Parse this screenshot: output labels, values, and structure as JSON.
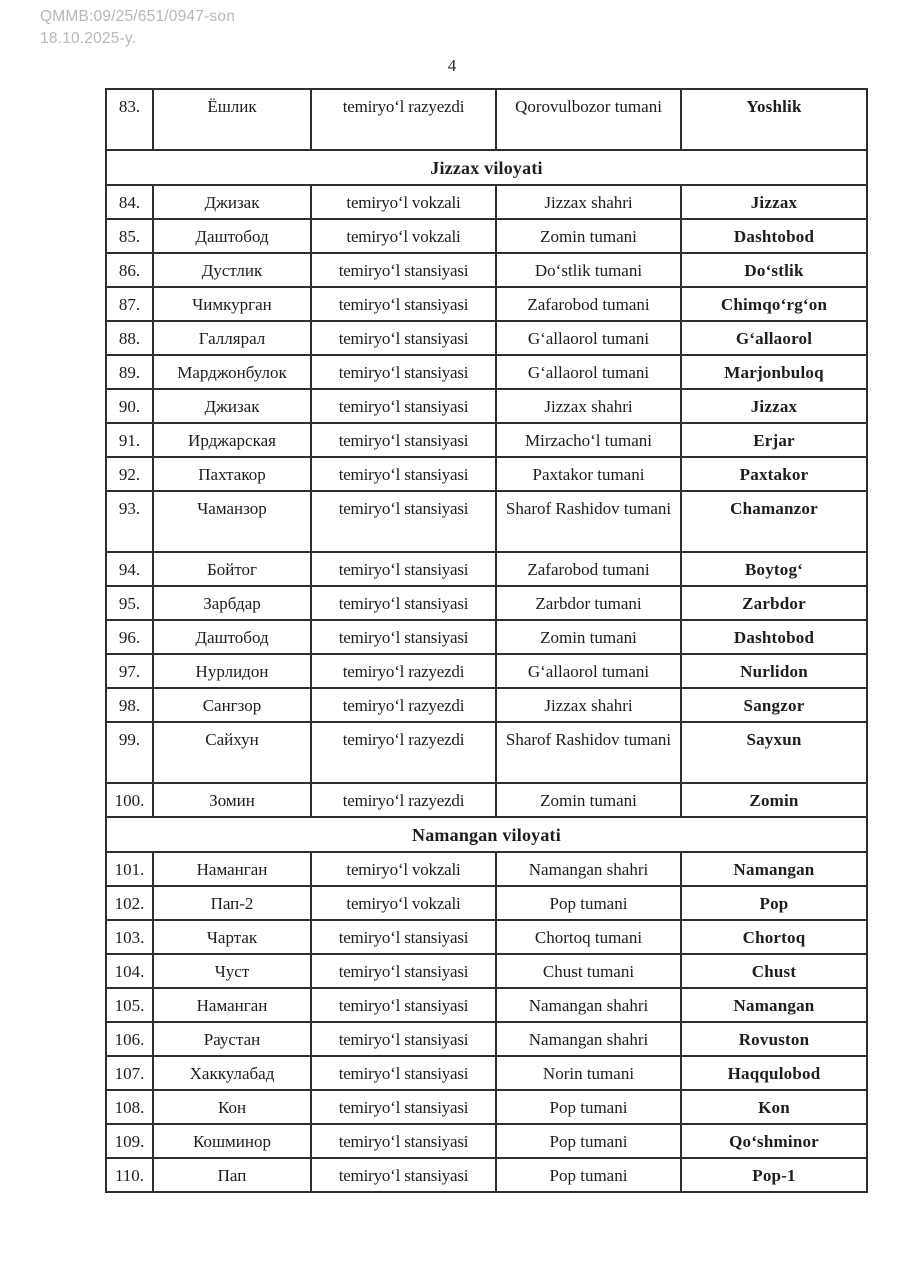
{
  "header": {
    "doc_ref": "QMMB:09/25/651/0947-son",
    "doc_date": "18.10.2025-y.",
    "page_number": "4"
  },
  "colors": {
    "ink": "#1d1d1d",
    "border": "#2e2e2e",
    "muted_header_text": "#b7b8bc",
    "background": "#ffffff"
  },
  "table": {
    "columns": [
      "number",
      "name_cyrillic",
      "facility_type",
      "location",
      "name_latin"
    ],
    "rows": [
      {
        "kind": "data",
        "no": "83.",
        "name_cyrillic": "Ёшлик",
        "facility_type": "temiryo‘l razyezdi",
        "location": "Qorovulbozor tumani",
        "name_latin": "Yoshlik",
        "tall": true
      },
      {
        "kind": "section",
        "label": "Jizzax viloyati"
      },
      {
        "kind": "data",
        "no": "84.",
        "name_cyrillic": "Джизак",
        "facility_type": "temiryo‘l vokzali",
        "location": "Jizzax shahri",
        "name_latin": "Jizzax",
        "tall": false
      },
      {
        "kind": "data",
        "no": "85.",
        "name_cyrillic": "Даштобод",
        "facility_type": "temiryo‘l vokzali",
        "location": "Zomin tumani",
        "name_latin": "Dashtobod",
        "tall": false
      },
      {
        "kind": "data",
        "no": "86.",
        "name_cyrillic": "Дустлик",
        "facility_type": "temiryo‘l stansiyasi",
        "location": "Do‘stlik tumani",
        "name_latin": "Do‘stlik",
        "tall": false
      },
      {
        "kind": "data",
        "no": "87.",
        "name_cyrillic": "Чимкурган",
        "facility_type": "temiryo‘l stansiyasi",
        "location": "Zafarobod tumani",
        "name_latin": "Chimqo‘rg‘on",
        "tall": false
      },
      {
        "kind": "data",
        "no": "88.",
        "name_cyrillic": "Галлярал",
        "facility_type": "temiryo‘l stansiyasi",
        "location": "G‘allaorol tumani",
        "name_latin": "G‘allaorol",
        "tall": false
      },
      {
        "kind": "data",
        "no": "89.",
        "name_cyrillic": "Марджонбулок",
        "facility_type": "temiryo‘l stansiyasi",
        "location": "G‘allaorol tumani",
        "name_latin": "Marjonbuloq",
        "tall": false
      },
      {
        "kind": "data",
        "no": "90.",
        "name_cyrillic": "Джизак",
        "facility_type": "temiryo‘l stansiyasi",
        "location": "Jizzax shahri",
        "name_latin": "Jizzax",
        "tall": false
      },
      {
        "kind": "data",
        "no": "91.",
        "name_cyrillic": "Ирджарская",
        "facility_type": "temiryo‘l stansiyasi",
        "location": "Mirzacho‘l tumani",
        "name_latin": "Erjar",
        "tall": false
      },
      {
        "kind": "data",
        "no": "92.",
        "name_cyrillic": "Пахтакор",
        "facility_type": "temiryo‘l stansiyasi",
        "location": "Paxtakor tumani",
        "name_latin": "Paxtakor",
        "tall": false
      },
      {
        "kind": "data",
        "no": "93.",
        "name_cyrillic": "Чаманзор",
        "facility_type": "temiryo‘l stansiyasi",
        "location": "Sharof Rashidov tumani",
        "name_latin": "Chamanzor",
        "tall": true
      },
      {
        "kind": "data",
        "no": "94.",
        "name_cyrillic": "Бойтог",
        "facility_type": "temiryo‘l stansiyasi",
        "location": "Zafarobod tumani",
        "name_latin": "Boytog‘",
        "tall": false
      },
      {
        "kind": "data",
        "no": "95.",
        "name_cyrillic": "Зарбдар",
        "facility_type": "temiryo‘l stansiyasi",
        "location": "Zarbdor tumani",
        "name_latin": "Zarbdor",
        "tall": false
      },
      {
        "kind": "data",
        "no": "96.",
        "name_cyrillic": "Даштобод",
        "facility_type": "temiryo‘l stansiyasi",
        "location": "Zomin tumani",
        "name_latin": "Dashtobod",
        "tall": false
      },
      {
        "kind": "data",
        "no": "97.",
        "name_cyrillic": "Нурлидон",
        "facility_type": "temiryo‘l razyezdi",
        "location": "G‘allaorol tumani",
        "name_latin": "Nurlidon",
        "tall": false
      },
      {
        "kind": "data",
        "no": "98.",
        "name_cyrillic": "Сангзор",
        "facility_type": "temiryo‘l razyezdi",
        "location": "Jizzax shahri",
        "name_latin": "Sangzor",
        "tall": false
      },
      {
        "kind": "data",
        "no": "99.",
        "name_cyrillic": "Сайхун",
        "facility_type": "temiryo‘l razyezdi",
        "location": "Sharof Rashidov tumani",
        "name_latin": "Sayxun",
        "tall": true
      },
      {
        "kind": "data",
        "no": "100.",
        "name_cyrillic": "Зомин",
        "facility_type": "temiryo‘l razyezdi",
        "location": "Zomin tumani",
        "name_latin": "Zomin",
        "tall": false
      },
      {
        "kind": "section",
        "label": "Namangan viloyati"
      },
      {
        "kind": "data",
        "no": "101.",
        "name_cyrillic": "Наманган",
        "facility_type": "temiryo‘l vokzali",
        "location": "Namangan shahri",
        "name_latin": "Namangan",
        "tall": false
      },
      {
        "kind": "data",
        "no": "102.",
        "name_cyrillic": "Пап-2",
        "facility_type": "temiryo‘l vokzali",
        "location": "Pop tumani",
        "name_latin": "Pop",
        "tall": false
      },
      {
        "kind": "data",
        "no": "103.",
        "name_cyrillic": "Чартак",
        "facility_type": "temiryo‘l stansiyasi",
        "location": "Chortoq tumani",
        "name_latin": "Chortoq",
        "tall": false
      },
      {
        "kind": "data",
        "no": "104.",
        "name_cyrillic": "Чуст",
        "facility_type": "temiryo‘l stansiyasi",
        "location": "Chust tumani",
        "name_latin": "Chust",
        "tall": false
      },
      {
        "kind": "data",
        "no": "105.",
        "name_cyrillic": "Наманган",
        "facility_type": "temiryo‘l stansiyasi",
        "location": "Namangan shahri",
        "name_latin": "Namangan",
        "tall": false
      },
      {
        "kind": "data",
        "no": "106.",
        "name_cyrillic": "Раустан",
        "facility_type": "temiryo‘l stansiyasi",
        "location": "Namangan shahri",
        "name_latin": "Rovuston",
        "tall": false
      },
      {
        "kind": "data",
        "no": "107.",
        "name_cyrillic": "Хаккулабад",
        "facility_type": "temiryo‘l stansiyasi",
        "location": "Norin tumani",
        "name_latin": "Haqqulobod",
        "tall": false
      },
      {
        "kind": "data",
        "no": "108.",
        "name_cyrillic": "Кон",
        "facility_type": "temiryo‘l stansiyasi",
        "location": "Pop tumani",
        "name_latin": "Kon",
        "tall": false
      },
      {
        "kind": "data",
        "no": "109.",
        "name_cyrillic": "Кошминор",
        "facility_type": "temiryo‘l stansiyasi",
        "location": "Pop tumani",
        "name_latin": "Qo‘shminor",
        "tall": false
      },
      {
        "kind": "data",
        "no": "110.",
        "name_cyrillic": "Пап",
        "facility_type": "temiryo‘l stansiyasi",
        "location": "Pop tumani",
        "name_latin": "Pop-1",
        "tall": false
      }
    ]
  }
}
